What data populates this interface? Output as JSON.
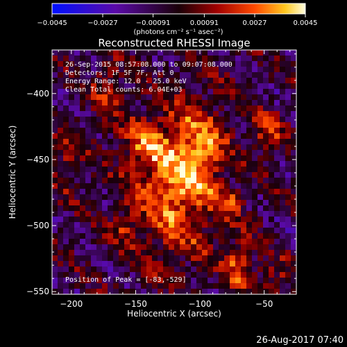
{
  "chart_data": {
    "type": "heatmap",
    "title": "Reconstructed RHESSI Image",
    "xlabel": "Heliocentric X (arcsec)",
    "ylabel": "Heliocentric Y (arcsec)",
    "xlim": [
      -215,
      -25
    ],
    "ylim": [
      -552,
      -367
    ],
    "x_ticks": [
      -200,
      -150,
      -100,
      -50
    ],
    "x_tick_labels": [
      "−200",
      "−150",
      "−100",
      "−50"
    ],
    "y_ticks": [
      -400,
      -450,
      -500,
      -550
    ],
    "y_tick_labels": [
      "−400",
      "−450",
      "−500",
      "−550"
    ],
    "colorbar": {
      "range": [
        -0.0045,
        0.0045
      ],
      "ticks": [
        -0.0045,
        -0.0027,
        -0.00091,
        0.00091,
        0.0027,
        0.0045
      ],
      "tick_labels": [
        "−0.0045",
        "−0.0027",
        "−0.00091",
        "0.00091",
        "0.0027",
        "0.0045"
      ],
      "label": "(photons cm⁻² s⁻¹ asec⁻²)"
    },
    "annotations": {
      "line1": "26-Sep-2015 08:57:08.000 to 09:07:08.000",
      "line2": "Detectors: 1F 5F 7F, Att 0",
      "line3": "Energy Range: 12.0 - 25.0 keV",
      "line4": "Clean    Total counts: 6.04E+03",
      "peak": "Position of Peak = [-83,-529]"
    },
    "sources": [
      {
        "x": -120,
        "y": -470,
        "sx": 22,
        "sy": 38,
        "amp": 0.0036
      },
      {
        "x": -100,
        "y": -440,
        "sx": 14,
        "sy": 22,
        "amp": 0.0024
      },
      {
        "x": -145,
        "y": -438,
        "sx": 12,
        "sy": 14,
        "amp": 0.0018
      },
      {
        "x": -78,
        "y": -482,
        "sx": 8,
        "sy": 8,
        "amp": 0.0022
      },
      {
        "x": -172,
        "y": -398,
        "sx": 8,
        "sy": 16,
        "amp": 0.0022
      },
      {
        "x": -202,
        "y": -450,
        "sx": 9,
        "sy": 16,
        "amp": 0.0019
      },
      {
        "x": -48,
        "y": -430,
        "sx": 9,
        "sy": 10,
        "amp": 0.0024
      },
      {
        "x": -70,
        "y": -530,
        "sx": 8,
        "sy": 14,
        "amp": 0.0028
      },
      {
        "x": -160,
        "y": -500,
        "sx": 7,
        "sy": 9,
        "amp": 0.0016
      },
      {
        "x": -42,
        "y": -540,
        "sx": 10,
        "sy": 10,
        "amp": 0.0017
      }
    ],
    "grid": false
  },
  "footer": {
    "timestamp": "26-Aug-2017 07:40"
  }
}
